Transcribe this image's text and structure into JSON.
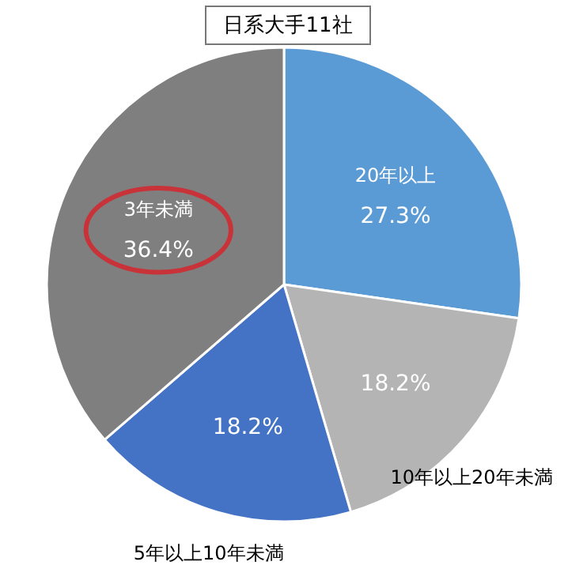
{
  "chart_data": {
    "type": "pie",
    "title": "日系大手11社",
    "categories": [
      "20年以上",
      "10年以上20年未満",
      "5年以上10年未満",
      "3年未満"
    ],
    "values": [
      27.3,
      18.2,
      18.2,
      36.4
    ],
    "value_labels": [
      "27.3%",
      "18.2%",
      "18.2%",
      "36.4%"
    ],
    "colors": [
      "#5b9bd5",
      "#b4b4b4",
      "#4472c4",
      "#7f7f7f"
    ]
  }
}
